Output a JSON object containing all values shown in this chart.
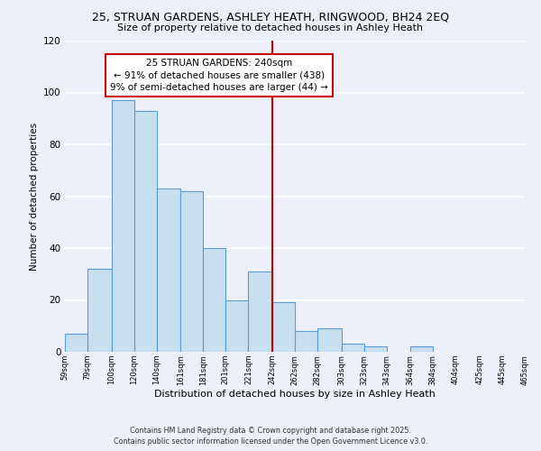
{
  "title": "25, STRUAN GARDENS, ASHLEY HEATH, RINGWOOD, BH24 2EQ",
  "subtitle": "Size of property relative to detached houses in Ashley Heath",
  "xlabel": "Distribution of detached houses by size in Ashley Heath",
  "ylabel": "Number of detached properties",
  "bar_color": "#c8dff0",
  "bar_edge_color": "#5b9bd5",
  "background_color": "#ecf0fb",
  "grid_color": "#ffffff",
  "bin_edges": [
    59,
    79,
    100,
    120,
    140,
    161,
    181,
    201,
    221,
    242,
    262,
    282,
    303,
    323,
    343,
    364,
    384,
    404,
    425,
    445,
    465
  ],
  "bin_labels": [
    "59sqm",
    "79sqm",
    "100sqm",
    "120sqm",
    "140sqm",
    "161sqm",
    "181sqm",
    "201sqm",
    "221sqm",
    "242sqm",
    "262sqm",
    "282sqm",
    "303sqm",
    "323sqm",
    "343sqm",
    "364sqm",
    "384sqm",
    "404sqm",
    "425sqm",
    "445sqm",
    "465sqm"
  ],
  "counts": [
    7,
    32,
    97,
    93,
    63,
    62,
    40,
    20,
    31,
    19,
    8,
    9,
    3,
    2,
    0,
    2,
    0,
    0,
    0,
    0
  ],
  "vline_x": 242,
  "vline_color": "#cc0000",
  "annotation_line1": "25 STRUAN GARDENS: 240sqm",
  "annotation_line2": "← 91% of detached houses are smaller (438)",
  "annotation_line3": "9% of semi-detached houses are larger (44) →",
  "annotation_box_edge": "#cc0000",
  "ylim": [
    0,
    120
  ],
  "yticks": [
    0,
    20,
    40,
    60,
    80,
    100,
    120
  ],
  "footer_line1": "Contains HM Land Registry data © Crown copyright and database right 2025.",
  "footer_line2": "Contains public sector information licensed under the Open Government Licence v3.0."
}
